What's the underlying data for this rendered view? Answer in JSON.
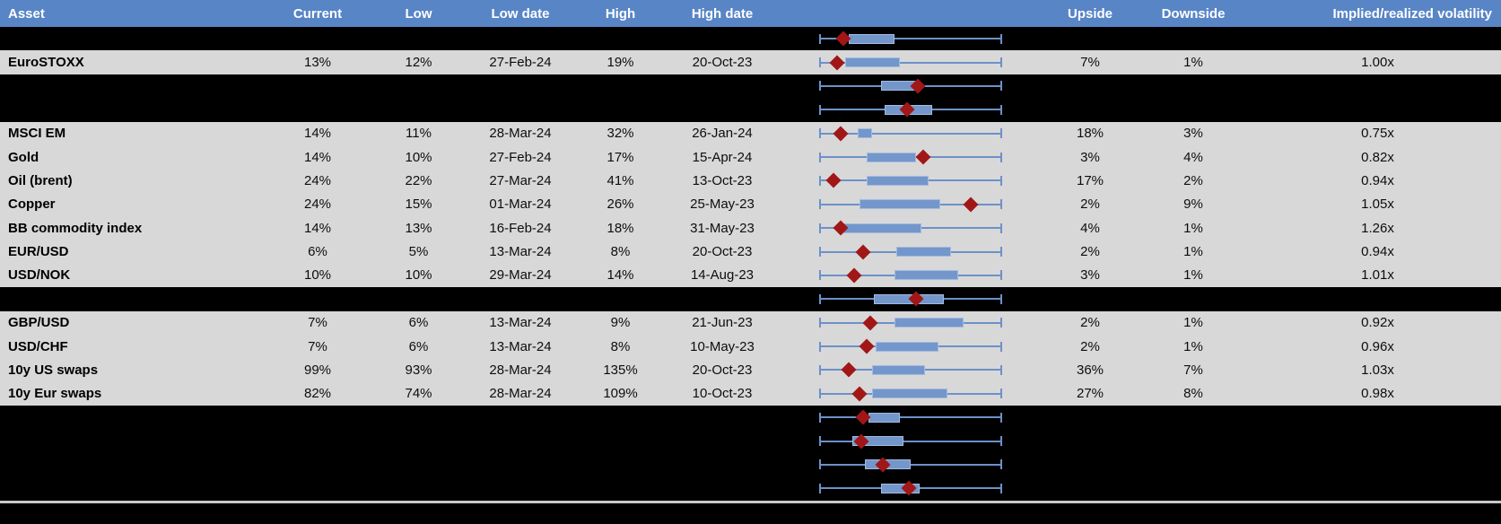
{
  "header": {
    "columns": [
      {
        "key": "asset",
        "label": "Asset"
      },
      {
        "key": "current",
        "label": "Current"
      },
      {
        "key": "low",
        "label": "Low"
      },
      {
        "key": "low_date",
        "label": "Low date"
      },
      {
        "key": "high",
        "label": "High"
      },
      {
        "key": "high_date",
        "label": "High date"
      },
      {
        "key": "chart",
        "label": ""
      },
      {
        "key": "upside",
        "label": "Upside"
      },
      {
        "key": "downside",
        "label": "Downside"
      },
      {
        "key": "impl_real_vol",
        "label": "Implied/realized volatility"
      }
    ]
  },
  "colors": {
    "header_bg": "#5885C6",
    "header_text": "#FFFFFF",
    "row_gray": "#D8D8D8",
    "row_black": "#000000",
    "box_fill": "#7396CB",
    "box_border": "#A3BBDF",
    "whisker_blue": "#6C91C8",
    "marker_red": "#A11717",
    "divider_gray": "#C8C8C8",
    "cell_text": "#0D0D0D"
  },
  "chart_data": {
    "type": "table",
    "note": "Each row embeds a normalized 52-week range plot: whisker = full range (0-1), box = inner range, diamond = current level",
    "rows": [
      {
        "kind": "spacer",
        "plot": {
          "marker": 0.13,
          "box_lo": 0.16,
          "box_hi": 0.41
        }
      },
      {
        "kind": "asset",
        "asset": "EuroSTOXX",
        "current": "13%",
        "low": "12%",
        "low_date": "27-Feb-24",
        "high": "19%",
        "high_date": "20-Oct-23",
        "upside": "7%",
        "downside": "1%",
        "impl_real_vol": "1.00x",
        "plot": {
          "marker": 0.1,
          "box_lo": 0.14,
          "box_hi": 0.44
        }
      },
      {
        "kind": "spacer",
        "plot": {
          "marker": 0.54,
          "box_lo": 0.34,
          "box_hi": 0.55
        }
      },
      {
        "kind": "spacer",
        "plot": {
          "marker": 0.48,
          "box_lo": 0.36,
          "box_hi": 0.62
        }
      },
      {
        "kind": "asset",
        "asset": "MSCI EM",
        "current": "14%",
        "low": "11%",
        "low_date": "28-Mar-24",
        "high": "32%",
        "high_date": "26-Jan-24",
        "upside": "18%",
        "downside": "3%",
        "impl_real_vol": "0.75x",
        "plot": {
          "marker": 0.12,
          "box_lo": 0.21,
          "box_hi": 0.29
        }
      },
      {
        "kind": "asset",
        "asset": "Gold",
        "current": "14%",
        "low": "10%",
        "low_date": "27-Feb-24",
        "high": "17%",
        "high_date": "15-Apr-24",
        "upside": "3%",
        "downside": "4%",
        "impl_real_vol": "0.82x",
        "plot": {
          "marker": 0.57,
          "box_lo": 0.26,
          "box_hi": 0.53
        }
      },
      {
        "kind": "asset",
        "asset": "Oil (brent)",
        "current": "24%",
        "low": "22%",
        "low_date": "27-Mar-24",
        "high": "41%",
        "high_date": "13-Oct-23",
        "upside": "17%",
        "downside": "2%",
        "impl_real_vol": "0.94x",
        "plot": {
          "marker": 0.08,
          "box_lo": 0.26,
          "box_hi": 0.6
        }
      },
      {
        "kind": "asset",
        "asset": "Copper",
        "current": "24%",
        "low": "15%",
        "low_date": "01-Mar-24",
        "high": "26%",
        "high_date": "25-May-23",
        "upside": "2%",
        "downside": "9%",
        "impl_real_vol": "1.05x",
        "plot": {
          "marker": 0.83,
          "box_lo": 0.22,
          "box_hi": 0.66
        }
      },
      {
        "kind": "asset",
        "asset": "BB commodity index",
        "current": "14%",
        "low": "13%",
        "low_date": "16-Feb-24",
        "high": "18%",
        "high_date": "31-May-23",
        "upside": "4%",
        "downside": "1%",
        "impl_real_vol": "1.26x",
        "plot": {
          "marker": 0.12,
          "box_lo": 0.13,
          "box_hi": 0.56
        }
      },
      {
        "kind": "asset",
        "asset": "EUR/USD",
        "current": "6%",
        "low": "5%",
        "low_date": "13-Mar-24",
        "high": "8%",
        "high_date": "20-Oct-23",
        "upside": "2%",
        "downside": "1%",
        "impl_real_vol": "0.94x",
        "plot": {
          "marker": 0.24,
          "box_lo": 0.42,
          "box_hi": 0.72
        }
      },
      {
        "kind": "asset",
        "asset": "USD/NOK",
        "current": "10%",
        "low": "10%",
        "low_date": "29-Mar-24",
        "high": "14%",
        "high_date": "14-Aug-23",
        "upside": "3%",
        "downside": "1%",
        "impl_real_vol": "1.01x",
        "plot": {
          "marker": 0.19,
          "box_lo": 0.41,
          "box_hi": 0.76
        }
      },
      {
        "kind": "spacer",
        "plot": {
          "marker": 0.53,
          "box_lo": 0.3,
          "box_hi": 0.68
        }
      },
      {
        "kind": "asset",
        "asset": "GBP/USD",
        "current": "7%",
        "low": "6%",
        "low_date": "13-Mar-24",
        "high": "9%",
        "high_date": "21-Jun-23",
        "upside": "2%",
        "downside": "1%",
        "impl_real_vol": "0.92x",
        "plot": {
          "marker": 0.28,
          "box_lo": 0.41,
          "box_hi": 0.79
        }
      },
      {
        "kind": "asset",
        "asset": "USD/CHF",
        "current": "7%",
        "low": "6%",
        "low_date": "13-Mar-24",
        "high": "8%",
        "high_date": "10-May-23",
        "upside": "2%",
        "downside": "1%",
        "impl_real_vol": "0.96x",
        "plot": {
          "marker": 0.26,
          "box_lo": 0.31,
          "box_hi": 0.65
        }
      },
      {
        "kind": "asset",
        "asset": "10y US swaps",
        "current": "99%",
        "low": "93%",
        "low_date": "28-Mar-24",
        "high": "135%",
        "high_date": "20-Oct-23",
        "upside": "36%",
        "downside": "7%",
        "impl_real_vol": "1.03x",
        "plot": {
          "marker": 0.16,
          "box_lo": 0.29,
          "box_hi": 0.58
        }
      },
      {
        "kind": "asset",
        "asset": "10y Eur swaps",
        "current": "82%",
        "low": "74%",
        "low_date": "28-Mar-24",
        "high": "109%",
        "high_date": "10-Oct-23",
        "upside": "27%",
        "downside": "8%",
        "impl_real_vol": "0.98x",
        "plot": {
          "marker": 0.22,
          "box_lo": 0.29,
          "box_hi": 0.7
        }
      }
    ],
    "footer_plots": [
      {
        "plot": {
          "marker": 0.24,
          "box_lo": 0.27,
          "box_hi": 0.44
        }
      },
      {
        "plot": {
          "marker": 0.23,
          "box_lo": 0.18,
          "box_hi": 0.46
        }
      },
      {
        "plot": {
          "marker": 0.35,
          "box_lo": 0.25,
          "box_hi": 0.5
        }
      },
      {
        "plot": {
          "marker": 0.49,
          "box_lo": 0.34,
          "box_hi": 0.55
        }
      }
    ]
  }
}
